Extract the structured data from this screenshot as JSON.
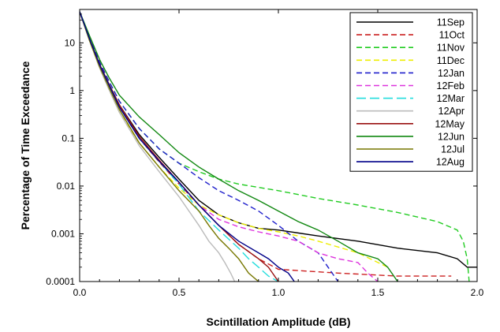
{
  "chart_data": {
    "type": "line",
    "xlabel": "Scintillation Amplitude (dB)",
    "ylabel": "Percentage of Time Exceedance",
    "xlim": [
      0,
      2
    ],
    "ylim": [
      0.0001,
      50
    ],
    "yscale": "log",
    "grid": false,
    "legend_position": "top-right",
    "x_ticks": [
      0,
      0.5,
      1,
      1.5,
      2
    ],
    "x_tick_labels": [
      "0.0",
      "0.5",
      "1.0",
      "1.5",
      "2.0"
    ],
    "y_ticks": [
      0.0001,
      0.001,
      0.01,
      0.1,
      1,
      10
    ],
    "y_tick_labels": [
      "0.0001",
      "0.001",
      "0.01",
      "0.1",
      "1",
      "10"
    ],
    "series": [
      {
        "name": "11Sep",
        "color": "#000000",
        "dash": "solid",
        "x": [
          0,
          0.05,
          0.1,
          0.15,
          0.2,
          0.3,
          0.4,
          0.5,
          0.6,
          0.7,
          0.8,
          0.9,
          1.0,
          1.2,
          1.4,
          1.6,
          1.8,
          1.9,
          1.95,
          2.0
        ],
        "y": [
          45,
          12,
          3.5,
          1.3,
          0.5,
          0.12,
          0.04,
          0.014,
          0.005,
          0.0025,
          0.0017,
          0.0013,
          0.0012,
          0.0009,
          0.0007,
          0.0005,
          0.0004,
          0.0003,
          0.0002,
          0.0002
        ]
      },
      {
        "name": "11Oct",
        "color": "#cc2020",
        "dash": "dashed",
        "x": [
          0,
          0.05,
          0.1,
          0.15,
          0.2,
          0.3,
          0.4,
          0.5,
          0.6,
          0.7,
          0.8,
          0.9,
          1.0,
          1.3,
          1.6,
          1.87
        ],
        "y": [
          45,
          12,
          3.4,
          1.25,
          0.45,
          0.1,
          0.032,
          0.011,
          0.004,
          0.0015,
          0.0006,
          0.0003,
          0.00018,
          0.00015,
          0.00013,
          0.00013
        ]
      },
      {
        "name": "11Nov",
        "color": "#22cc22",
        "dash": "dashed",
        "x": [
          0,
          0.05,
          0.1,
          0.15,
          0.2,
          0.3,
          0.4,
          0.5,
          0.6,
          0.7,
          0.8,
          1.0,
          1.2,
          1.4,
          1.6,
          1.8,
          1.9,
          1.93,
          1.95,
          1.96
        ],
        "y": [
          45,
          13,
          4,
          1.5,
          0.6,
          0.16,
          0.06,
          0.03,
          0.02,
          0.014,
          0.011,
          0.008,
          0.0055,
          0.004,
          0.0028,
          0.0018,
          0.0012,
          0.0007,
          0.0003,
          0.0001
        ]
      },
      {
        "name": "11Dec",
        "color": "#eeee00",
        "dash": "dashed",
        "x": [
          0,
          0.05,
          0.1,
          0.15,
          0.2,
          0.3,
          0.4,
          0.5,
          0.6,
          0.7,
          0.8,
          0.9,
          1.0,
          1.1,
          1.2,
          1.4,
          1.55
        ],
        "y": [
          45,
          11,
          3.0,
          1.0,
          0.35,
          0.08,
          0.025,
          0.009,
          0.004,
          0.0025,
          0.0017,
          0.0013,
          0.0011,
          0.0009,
          0.0007,
          0.0004,
          0.0002
        ]
      },
      {
        "name": "12Jan",
        "color": "#2020cc",
        "dash": "dashed",
        "x": [
          0,
          0.05,
          0.1,
          0.15,
          0.2,
          0.3,
          0.4,
          0.5,
          0.6,
          0.7,
          0.8,
          0.9,
          1.0,
          1.1,
          1.2,
          1.25,
          1.3
        ],
        "y": [
          45,
          13,
          4,
          1.5,
          0.6,
          0.16,
          0.06,
          0.03,
          0.015,
          0.008,
          0.005,
          0.003,
          0.0015,
          0.0007,
          0.0004,
          0.0002,
          0.0001
        ]
      },
      {
        "name": "12Feb",
        "color": "#dd33dd",
        "dash": "dashed",
        "x": [
          0,
          0.05,
          0.1,
          0.15,
          0.2,
          0.3,
          0.4,
          0.5,
          0.6,
          0.7,
          0.8,
          0.9,
          1.0,
          1.1,
          1.2,
          1.3,
          1.4,
          1.45,
          1.5
        ],
        "y": [
          45,
          12,
          3.5,
          1.2,
          0.45,
          0.1,
          0.035,
          0.012,
          0.004,
          0.002,
          0.0014,
          0.0011,
          0.0009,
          0.0007,
          0.0004,
          0.0003,
          0.00025,
          0.00015,
          0.0001
        ]
      },
      {
        "name": "12Mar",
        "color": "#22dddd",
        "dash": "longdash",
        "x": [
          0,
          0.05,
          0.1,
          0.15,
          0.2,
          0.3,
          0.4,
          0.5,
          0.6,
          0.7,
          0.8,
          0.85,
          0.9,
          0.95,
          1.0
        ],
        "y": [
          45,
          12,
          3.5,
          1.2,
          0.45,
          0.1,
          0.033,
          0.011,
          0.003,
          0.0012,
          0.0005,
          0.0003,
          0.0002,
          0.00013,
          0.0001
        ]
      },
      {
        "name": "12Apr",
        "color": "#bbbbbb",
        "dash": "solid",
        "x": [
          0,
          0.05,
          0.1,
          0.15,
          0.2,
          0.3,
          0.4,
          0.5,
          0.55,
          0.6,
          0.65,
          0.7,
          0.73,
          0.76,
          0.78
        ],
        "y": [
          45,
          11,
          3.0,
          1.0,
          0.35,
          0.07,
          0.02,
          0.006,
          0.003,
          0.0015,
          0.0007,
          0.0004,
          0.00025,
          0.00015,
          0.0001
        ]
      },
      {
        "name": "12May",
        "color": "#991111",
        "dash": "solid",
        "x": [
          0,
          0.05,
          0.1,
          0.15,
          0.2,
          0.3,
          0.4,
          0.5,
          0.6,
          0.7,
          0.8,
          0.9,
          0.95,
          1.0
        ],
        "y": [
          45,
          12,
          3.6,
          1.3,
          0.5,
          0.11,
          0.035,
          0.012,
          0.004,
          0.0015,
          0.0006,
          0.0003,
          0.0002,
          0.0001
        ]
      },
      {
        "name": "12Jun",
        "color": "#118811",
        "dash": "solid",
        "x": [
          0,
          0.05,
          0.1,
          0.15,
          0.2,
          0.3,
          0.4,
          0.5,
          0.6,
          0.7,
          0.8,
          0.9,
          1.0,
          1.1,
          1.2,
          1.3,
          1.4,
          1.5,
          1.55,
          1.6
        ],
        "y": [
          45,
          14,
          4.5,
          1.8,
          0.8,
          0.28,
          0.12,
          0.05,
          0.025,
          0.014,
          0.008,
          0.005,
          0.003,
          0.0018,
          0.0012,
          0.0007,
          0.0004,
          0.0003,
          0.0002,
          0.0001
        ]
      },
      {
        "name": "12Jul",
        "color": "#777700",
        "dash": "solid",
        "x": [
          0,
          0.05,
          0.1,
          0.15,
          0.2,
          0.3,
          0.4,
          0.5,
          0.6,
          0.65,
          0.7,
          0.75,
          0.8,
          0.85,
          0.9
        ],
        "y": [
          45,
          11,
          3.2,
          1.1,
          0.4,
          0.08,
          0.025,
          0.008,
          0.003,
          0.0015,
          0.0008,
          0.0005,
          0.0003,
          0.00015,
          0.0001
        ]
      },
      {
        "name": "12Aug",
        "color": "#000088",
        "dash": "solid",
        "x": [
          0,
          0.05,
          0.1,
          0.15,
          0.2,
          0.3,
          0.4,
          0.5,
          0.6,
          0.7,
          0.8,
          0.9,
          0.95,
          1.0,
          1.05,
          1.08
        ],
        "y": [
          45,
          12,
          3.5,
          1.25,
          0.45,
          0.1,
          0.033,
          0.012,
          0.004,
          0.0015,
          0.0007,
          0.0004,
          0.0003,
          0.0002,
          0.00015,
          0.0001
        ]
      }
    ]
  }
}
